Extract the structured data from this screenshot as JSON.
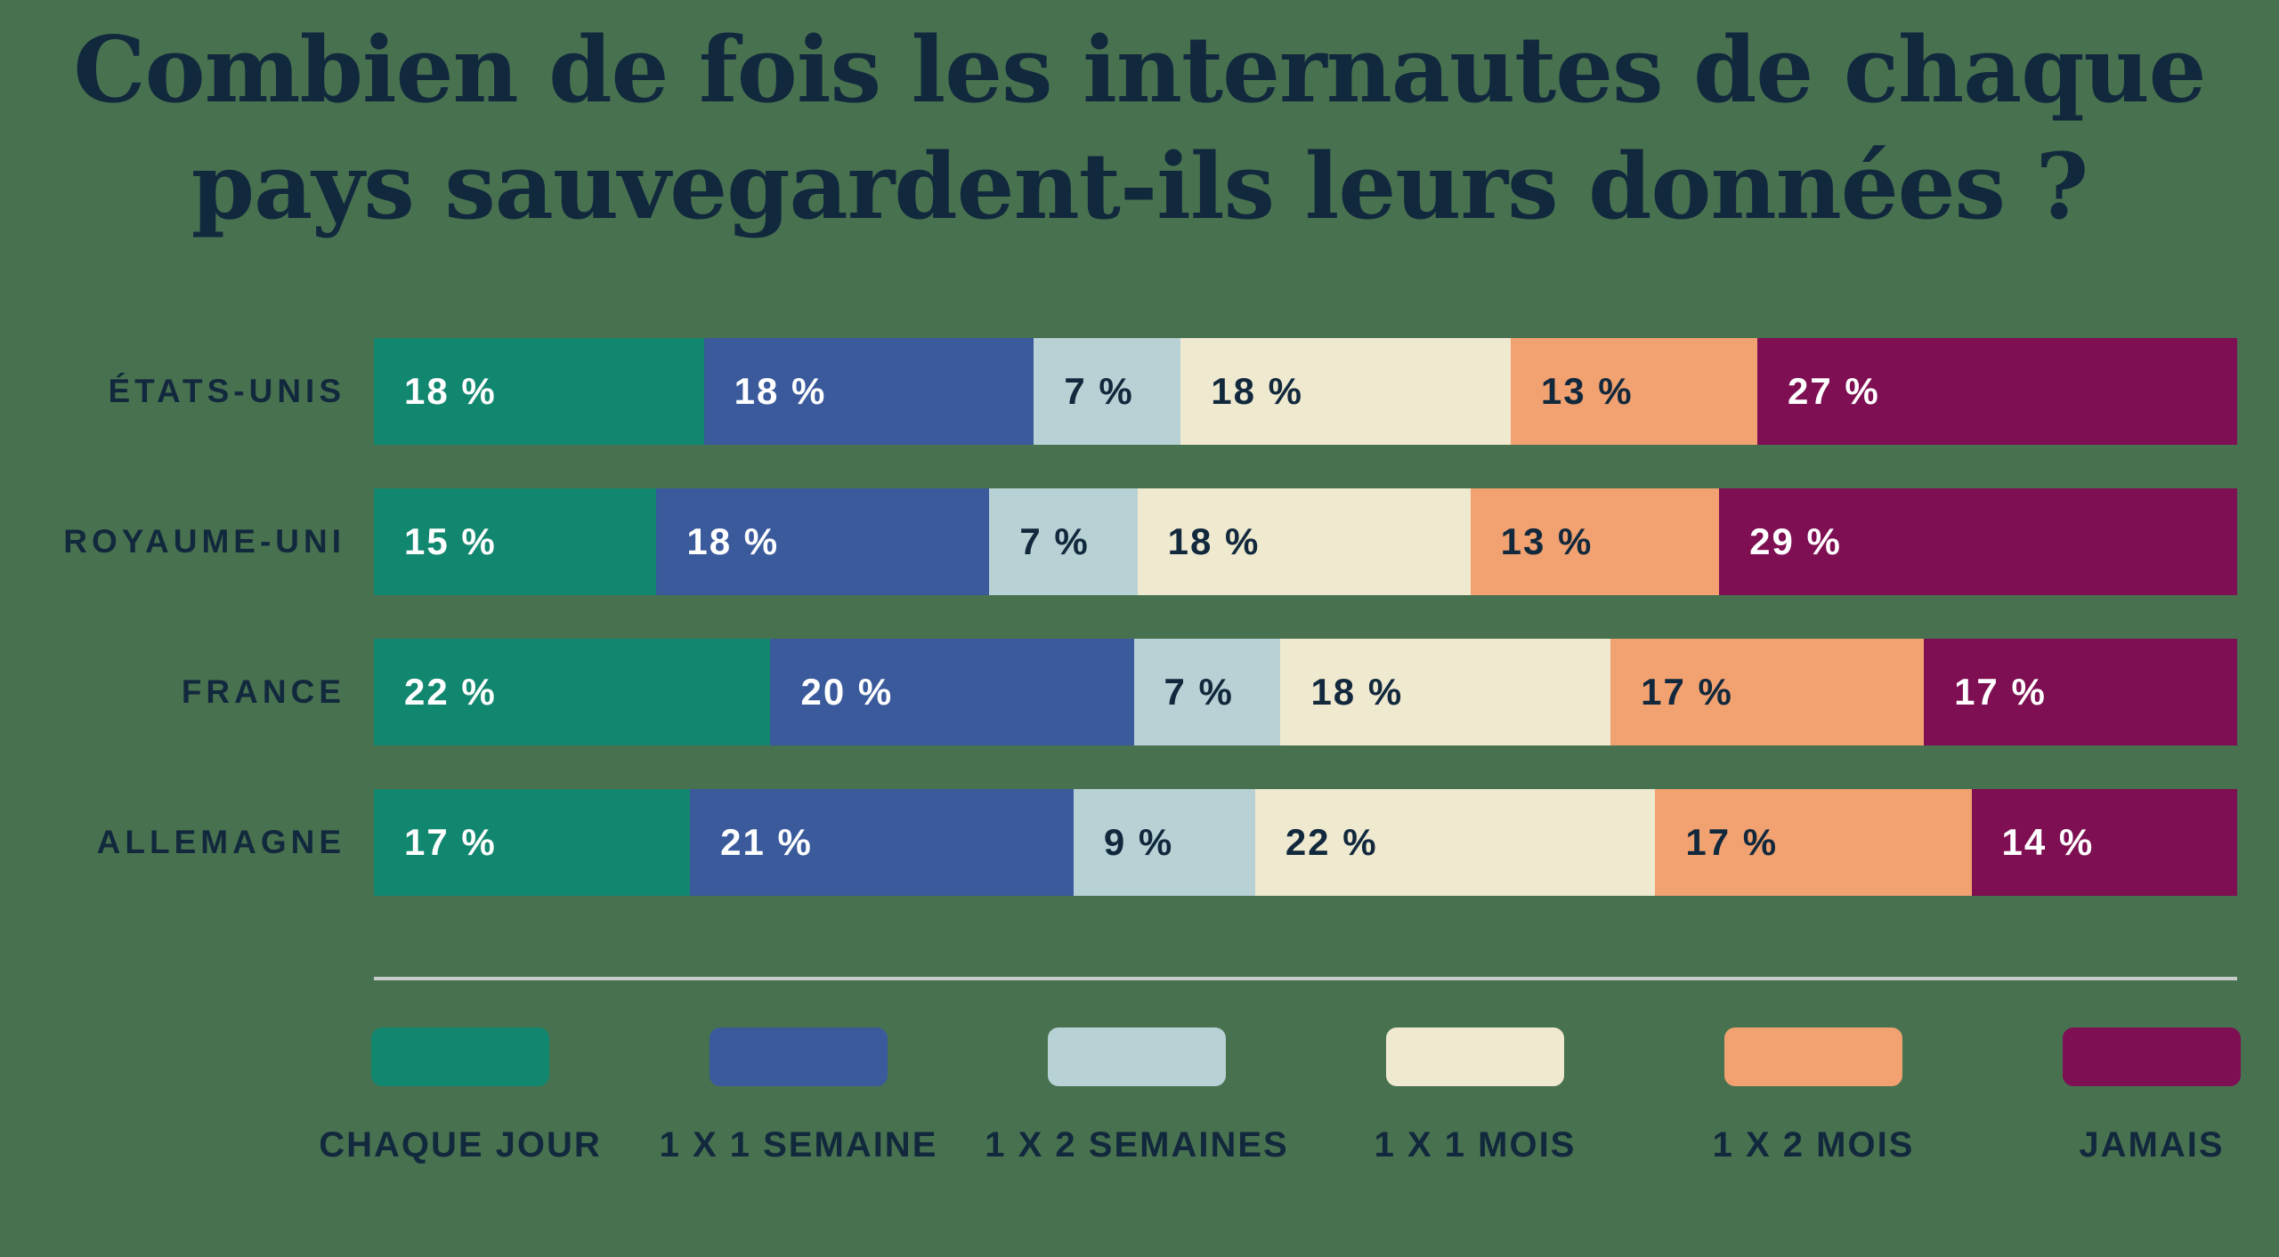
{
  "title": {
    "line1": "Combien de fois les internautes de chaque",
    "line2": "pays sauvegardent-ils leurs données ?"
  },
  "colors": {
    "background": "#487150",
    "text_dark": "#12293d",
    "text_light": "#ffffff",
    "separator": "#c8ccc9"
  },
  "chart_data": {
    "type": "bar",
    "stacked": true,
    "orientation": "horizontal",
    "unit": "%",
    "value_label_suffix": " %",
    "categories": [
      "ÉTATS-UNIS",
      "ROYAUME-UNI",
      "FRANCE",
      "ALLEMAGNE"
    ],
    "series": [
      {
        "name": "CHAQUE JOUR",
        "color": "#12876f",
        "text_color": "#ffffff",
        "values": [
          18,
          15,
          22,
          17
        ]
      },
      {
        "name": "1 X 1 SEMAINE",
        "color": "#3a5a9c",
        "text_color": "#ffffff",
        "values": [
          18,
          18,
          20,
          21
        ]
      },
      {
        "name": "1 X 2 SEMAINES",
        "color": "#b7d1d4",
        "text_color": "#12293d",
        "values": [
          7,
          7,
          7,
          9
        ]
      },
      {
        "name": "1 X 1 MOIS",
        "color": "#efe9d0",
        "text_color": "#12293d",
        "values": [
          18,
          18,
          18,
          22
        ]
      },
      {
        "name": "1 X 2 MOIS",
        "color": "#f2a170",
        "text_color": "#12293d",
        "values": [
          13,
          13,
          17,
          17
        ]
      },
      {
        "name": "JAMAIS",
        "color": "#7e0f52",
        "text_color": "#ffffff",
        "values": [
          27,
          29,
          17,
          14
        ]
      }
    ],
    "legend_position": "bottom"
  }
}
